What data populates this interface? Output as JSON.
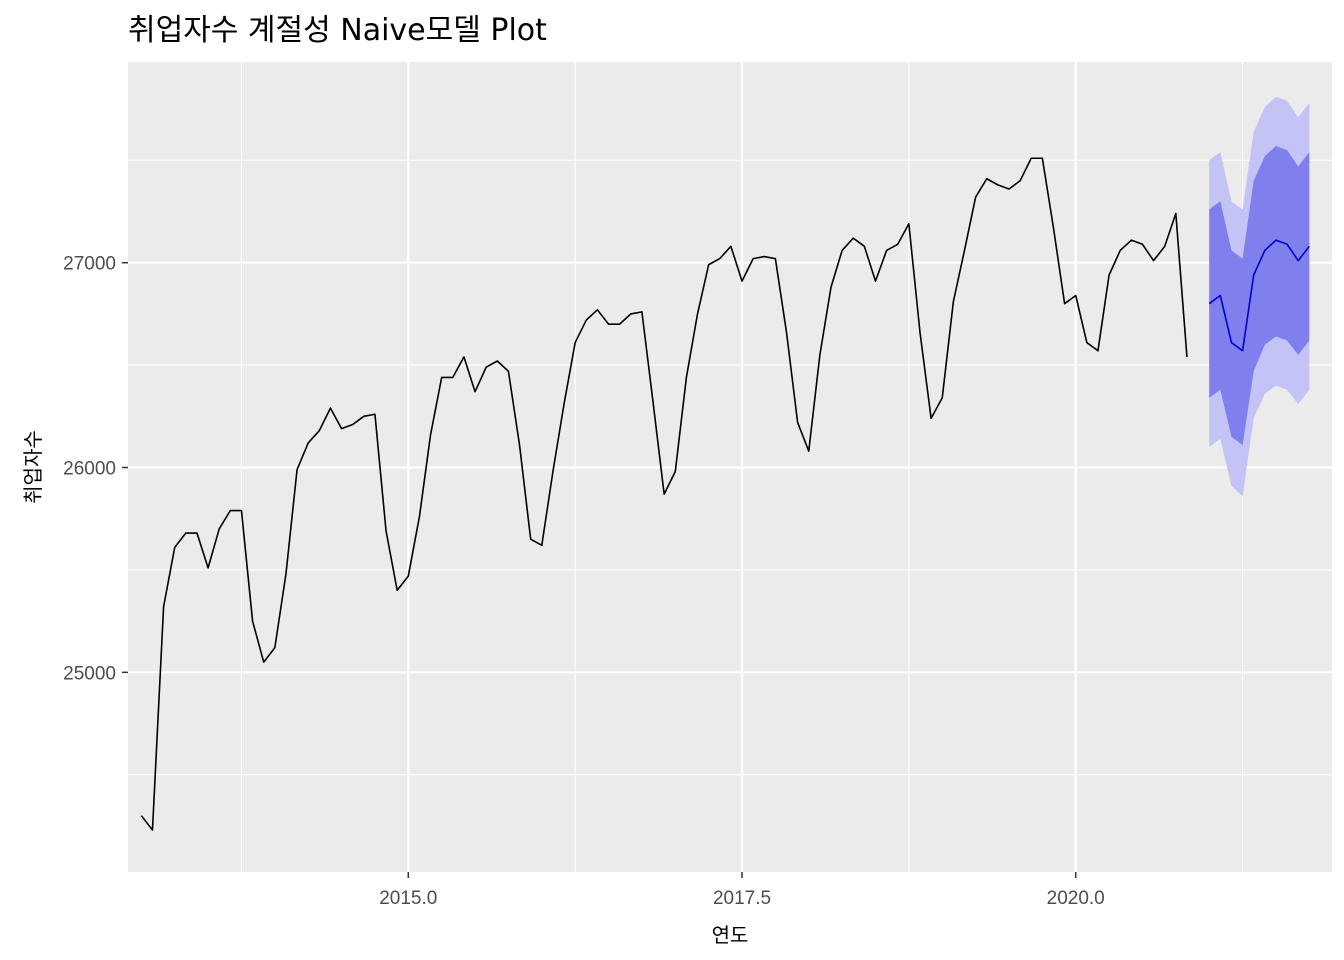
{
  "chart_data": {
    "type": "line",
    "title": "취업자수 계절성 Naive모델 Plot",
    "xlabel": "연도",
    "ylabel": "취업자수",
    "xlim": [
      2012.9,
      2021.92
    ],
    "ylim": [
      24025,
      27980
    ],
    "x_ticks": [
      2015.0,
      2017.5,
      2020.0
    ],
    "x_tick_labels": [
      "2015.0",
      "2017.5",
      "2020.0"
    ],
    "x_minor_ticks": [
      2013.75,
      2016.25,
      2018.75,
      2021.25
    ],
    "y_ticks": [
      25000,
      26000,
      27000
    ],
    "y_tick_labels": [
      "25000",
      "26000",
      "27000"
    ],
    "y_minor_ticks": [
      24500,
      25500,
      26500,
      27500
    ],
    "grid": true,
    "legend": "none",
    "colors": {
      "panel_bg": "#EBEBEB",
      "grid": "#FFFFFF",
      "actual_line": "#000000",
      "forecast_line": "#0000CC",
      "band80": "#7F7FEE",
      "band95": "#C3C3F5"
    },
    "series": [
      {
        "role": "actual",
        "x_start": 2013.0,
        "step": 0.08333333,
        "values": [
          24300,
          24230,
          25320,
          25610,
          25680,
          25680,
          25510,
          25700,
          25790,
          25790,
          25250,
          25050,
          25120,
          25480,
          25990,
          26120,
          26180,
          26290,
          26190,
          26210,
          26250,
          26260,
          25690,
          25400,
          25470,
          25760,
          26160,
          26440,
          26440,
          26540,
          26370,
          26490,
          26520,
          26470,
          26110,
          25650,
          25620,
          25980,
          26310,
          26610,
          26720,
          26770,
          26700,
          26700,
          26750,
          26760,
          26320,
          25870,
          25980,
          26440,
          26750,
          26990,
          27020,
          27080,
          26910,
          27020,
          27030,
          27020,
          26660,
          26220,
          26080,
          26550,
          26880,
          27060,
          27120,
          27080,
          26910,
          27060,
          27090,
          27190,
          26660,
          26240,
          26340,
          26810,
          27060,
          27320,
          27410,
          27380,
          27360,
          27400,
          27510,
          27510,
          27170,
          26800,
          26840,
          26610,
          26570,
          26940,
          27060,
          27110,
          27090,
          27010,
          27080,
          27240,
          26540
        ]
      },
      {
        "role": "forecast",
        "x_start": 2021.0,
        "step": 0.08333333,
        "values": [
          26800,
          26840,
          26610,
          26570,
          26940,
          27060,
          27110,
          27090,
          27010,
          27080
        ],
        "lo80": [
          26340,
          26380,
          26150,
          26110,
          26470,
          26600,
          26640,
          26620,
          26550,
          26620
        ],
        "hi80": [
          27260,
          27300,
          27060,
          27020,
          27400,
          27520,
          27570,
          27550,
          27470,
          27540
        ],
        "lo95": [
          26100,
          26140,
          25910,
          25860,
          26240,
          26360,
          26400,
          26380,
          26310,
          26380
        ],
        "hi95": [
          27500,
          27540,
          27300,
          27260,
          27640,
          27760,
          27810,
          27790,
          27710,
          27780
        ]
      }
    ]
  }
}
